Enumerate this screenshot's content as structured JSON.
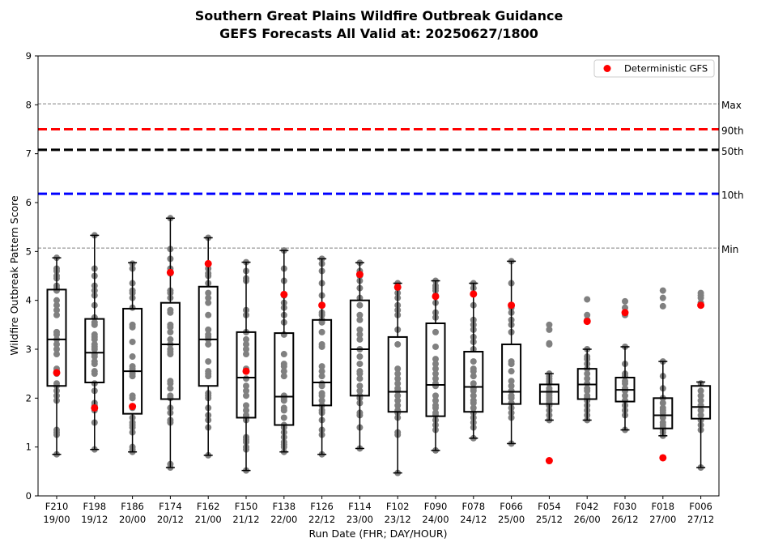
{
  "chart_data": {
    "type": "box",
    "title_line1": "Southern Great Plains Wildfire Outbreak Guidance",
    "title_line2": "GEFS Forecasts All Valid at: 20250627/1800",
    "xlabel": "Run Date (FHR; DAY/HOUR)",
    "ylabel": "Wildfire Outbreak Pattern Score",
    "ylim": [
      0,
      9
    ],
    "yticks": [
      "0",
      "1",
      "2",
      "3",
      "4",
      "5",
      "6",
      "7",
      "8",
      "9"
    ],
    "categories": [
      {
        "fhr": "F210",
        "dayhour": "19/00"
      },
      {
        "fhr": "F198",
        "dayhour": "19/12"
      },
      {
        "fhr": "F186",
        "dayhour": "20/00"
      },
      {
        "fhr": "F174",
        "dayhour": "20/12"
      },
      {
        "fhr": "F162",
        "dayhour": "21/00"
      },
      {
        "fhr": "F150",
        "dayhour": "21/12"
      },
      {
        "fhr": "F138",
        "dayhour": "22/00"
      },
      {
        "fhr": "F126",
        "dayhour": "22/12"
      },
      {
        "fhr": "F114",
        "dayhour": "23/00"
      },
      {
        "fhr": "F102",
        "dayhour": "23/12"
      },
      {
        "fhr": "F090",
        "dayhour": "24/00"
      },
      {
        "fhr": "F078",
        "dayhour": "24/12"
      },
      {
        "fhr": "F066",
        "dayhour": "25/00"
      },
      {
        "fhr": "F054",
        "dayhour": "25/12"
      },
      {
        "fhr": "F042",
        "dayhour": "26/00"
      },
      {
        "fhr": "F030",
        "dayhour": "26/12"
      },
      {
        "fhr": "F018",
        "dayhour": "27/00"
      },
      {
        "fhr": "F006",
        "dayhour": "27/12"
      }
    ],
    "boxes": [
      {
        "min": 0.85,
        "q1": 2.25,
        "median": 3.2,
        "q3": 4.22,
        "max": 4.87
      },
      {
        "min": 0.95,
        "q1": 2.32,
        "median": 2.93,
        "q3": 3.62,
        "max": 5.33
      },
      {
        "min": 0.9,
        "q1": 1.68,
        "median": 2.55,
        "q3": 3.83,
        "max": 4.77
      },
      {
        "min": 0.58,
        "q1": 1.98,
        "median": 3.1,
        "q3": 3.95,
        "max": 5.68
      },
      {
        "min": 0.83,
        "q1": 2.25,
        "median": 3.2,
        "q3": 4.28,
        "max": 5.28
      },
      {
        "min": 0.52,
        "q1": 1.6,
        "median": 2.42,
        "q3": 3.35,
        "max": 4.78
      },
      {
        "min": 0.9,
        "q1": 1.45,
        "median": 2.03,
        "q3": 3.33,
        "max": 5.02
      },
      {
        "min": 0.85,
        "q1": 1.85,
        "median": 2.32,
        "q3": 3.6,
        "max": 4.85
      },
      {
        "min": 0.97,
        "q1": 2.05,
        "median": 3.0,
        "q3": 4.0,
        "max": 4.77
      },
      {
        "min": 0.47,
        "q1": 1.72,
        "median": 2.13,
        "q3": 3.25,
        "max": 4.35
      },
      {
        "min": 0.93,
        "q1": 1.63,
        "median": 2.27,
        "q3": 3.53,
        "max": 4.4
      },
      {
        "min": 1.18,
        "q1": 1.72,
        "median": 2.23,
        "q3": 2.95,
        "max": 4.35
      },
      {
        "min": 1.07,
        "q1": 1.88,
        "median": 2.13,
        "q3": 3.1,
        "max": 4.8
      },
      {
        "min": 1.55,
        "q1": 1.88,
        "median": 2.13,
        "q3": 2.28,
        "max": 2.5
      },
      {
        "min": 1.55,
        "q1": 1.98,
        "median": 2.28,
        "q3": 2.6,
        "max": 3.0
      },
      {
        "min": 1.35,
        "q1": 1.93,
        "median": 2.17,
        "q3": 2.42,
        "max": 3.05
      },
      {
        "min": 1.23,
        "q1": 1.38,
        "median": 1.65,
        "q3": 2.0,
        "max": 2.75
      },
      {
        "min": 0.58,
        "q1": 1.58,
        "median": 1.82,
        "q3": 2.25,
        "max": 2.33
      }
    ],
    "members": [
      [
        0.85,
        1.25,
        1.3,
        1.35,
        1.95,
        2.05,
        2.15,
        2.25,
        2.3,
        2.5,
        2.55,
        2.6,
        2.9,
        3.0,
        3.1,
        3.2,
        3.3,
        3.35,
        3.7,
        3.8,
        3.9,
        4.0,
        4.2,
        4.25,
        4.3,
        4.45,
        4.5,
        4.6,
        4.65,
        4.87
      ],
      [
        0.95,
        1.5,
        1.75,
        1.85,
        1.9,
        2.15,
        2.3,
        2.5,
        2.55,
        2.7,
        2.75,
        2.85,
        2.9,
        3.0,
        3.05,
        3.1,
        3.2,
        3.25,
        3.3,
        3.5,
        3.55,
        3.65,
        3.9,
        4.1,
        4.2,
        4.3,
        4.5,
        4.65,
        5.33
      ],
      [
        0.9,
        0.95,
        1.0,
        1.3,
        1.4,
        1.45,
        1.5,
        1.6,
        1.8,
        2.0,
        2.05,
        2.45,
        2.5,
        2.55,
        2.6,
        2.65,
        2.85,
        3.15,
        3.45,
        3.5,
        3.85,
        4.05,
        4.15,
        4.2,
        4.35,
        4.65,
        4.75
      ],
      [
        0.58,
        0.65,
        1.5,
        1.55,
        1.7,
        1.8,
        2.0,
        2.05,
        2.2,
        2.3,
        2.35,
        2.9,
        2.95,
        3.0,
        3.1,
        3.2,
        3.35,
        3.45,
        3.5,
        3.75,
        3.8,
        4.05,
        4.15,
        4.2,
        4.55,
        4.65,
        4.85,
        5.05,
        5.68
      ],
      [
        0.83,
        1.4,
        1.55,
        1.65,
        1.8,
        2.0,
        2.05,
        2.1,
        2.45,
        2.5,
        2.55,
        2.75,
        3.1,
        3.2,
        3.25,
        3.3,
        3.4,
        3.7,
        3.95,
        4.05,
        4.15,
        4.35,
        4.5,
        4.55,
        4.65,
        4.75,
        5.28
      ],
      [
        0.52,
        0.95,
        1.0,
        1.1,
        1.15,
        1.2,
        1.55,
        1.6,
        1.65,
        1.75,
        1.85,
        2.05,
        2.15,
        2.25,
        2.4,
        2.55,
        2.6,
        2.9,
        3.0,
        3.1,
        3.2,
        3.35,
        3.7,
        3.8,
        4.4,
        4.45,
        4.6,
        4.78
      ],
      [
        0.9,
        1.0,
        1.05,
        1.1,
        1.2,
        1.3,
        1.4,
        1.45,
        1.6,
        1.75,
        1.8,
        1.95,
        2.0,
        2.05,
        2.45,
        2.55,
        2.65,
        2.7,
        2.9,
        3.3,
        3.55,
        3.7,
        3.85,
        3.95,
        4.1,
        4.4,
        4.65,
        5.02
      ],
      [
        0.85,
        1.25,
        1.35,
        1.55,
        1.7,
        1.75,
        1.85,
        1.95,
        2.05,
        2.1,
        2.25,
        2.3,
        2.45,
        2.55,
        2.65,
        3.05,
        3.1,
        3.35,
        3.55,
        3.6,
        3.7,
        3.75,
        3.9,
        4.1,
        4.35,
        4.6,
        4.75,
        4.85
      ],
      [
        0.97,
        1.4,
        1.65,
        1.7,
        1.9,
        2.0,
        2.05,
        2.15,
        2.25,
        2.4,
        2.5,
        2.55,
        2.7,
        2.85,
        3.0,
        3.2,
        3.3,
        3.4,
        3.6,
        3.7,
        3.9,
        4.05,
        4.25,
        4.4,
        4.5,
        4.6,
        4.77
      ],
      [
        0.47,
        1.25,
        1.3,
        1.6,
        1.7,
        1.75,
        1.85,
        1.95,
        2.05,
        2.15,
        2.2,
        2.3,
        2.4,
        2.5,
        2.6,
        3.1,
        3.4,
        3.7,
        3.8,
        3.9,
        4.05,
        4.15,
        4.25,
        4.35
      ],
      [
        0.93,
        1.35,
        1.45,
        1.55,
        1.65,
        1.7,
        1.8,
        1.85,
        1.95,
        2.05,
        2.25,
        2.3,
        2.4,
        2.5,
        2.6,
        2.7,
        2.8,
        3.05,
        3.35,
        3.65,
        3.75,
        3.95,
        4.1,
        4.2,
        4.25,
        4.3,
        4.4
      ],
      [
        1.18,
        1.4,
        1.5,
        1.6,
        1.7,
        1.8,
        1.9,
        1.95,
        2.05,
        2.15,
        2.2,
        2.3,
        2.45,
        2.55,
        2.6,
        2.75,
        3.0,
        3.15,
        3.25,
        3.4,
        3.5,
        3.6,
        3.9,
        4.25,
        4.35
      ],
      [
        1.07,
        1.6,
        1.7,
        1.8,
        1.9,
        2.0,
        2.05,
        2.15,
        2.25,
        2.35,
        2.55,
        2.7,
        2.75,
        3.35,
        3.5,
        3.6,
        3.75,
        3.85,
        4.35,
        4.8
      ],
      [
        1.55,
        1.65,
        1.75,
        1.85,
        1.9,
        1.95,
        2.0,
        2.05,
        2.1,
        2.15,
        2.2,
        2.3,
        2.35,
        2.4,
        2.45,
        2.5,
        3.1,
        3.12,
        3.4,
        3.5
      ],
      [
        1.55,
        1.65,
        1.75,
        1.85,
        1.95,
        2.0,
        2.05,
        2.15,
        2.2,
        2.3,
        2.4,
        2.5,
        2.6,
        2.7,
        2.8,
        2.85,
        3.0,
        3.6,
        3.7,
        4.02
      ],
      [
        1.35,
        1.65,
        1.75,
        1.85,
        1.95,
        2.05,
        2.15,
        2.2,
        2.3,
        2.35,
        2.45,
        2.5,
        2.7,
        3.05,
        3.7,
        3.75,
        3.85,
        3.98
      ],
      [
        1.23,
        1.3,
        1.35,
        1.4,
        1.45,
        1.5,
        1.6,
        1.7,
        1.75,
        1.8,
        1.9,
        2.0,
        2.2,
        2.45,
        2.75,
        3.88,
        4.05,
        4.2
      ],
      [
        0.58,
        1.35,
        1.45,
        1.55,
        1.65,
        1.75,
        1.85,
        1.95,
        2.05,
        2.15,
        2.3,
        3.95,
        4.05,
        4.1,
        4.15
      ]
    ],
    "deterministic": [
      2.52,
      1.8,
      1.83,
      4.57,
      4.75,
      2.55,
      4.12,
      3.9,
      4.53,
      4.27,
      4.08,
      4.13,
      3.9,
      0.72,
      3.57,
      3.75,
      0.78,
      3.9
    ],
    "reference_lines": [
      {
        "label": "Max",
        "value": 8.02,
        "color": "#808080",
        "style": "thin-dashed"
      },
      {
        "label": "90th",
        "value": 7.5,
        "color": "#ff0000",
        "style": "thick-dashed"
      },
      {
        "label": "50th",
        "value": 7.08,
        "color": "#000000",
        "style": "thick-dashed"
      },
      {
        "label": "10th",
        "value": 6.18,
        "color": "#0000ff",
        "style": "thick-dashed"
      },
      {
        "label": "Min",
        "value": 5.07,
        "color": "#808080",
        "style": "thin-dashed"
      }
    ],
    "legend": {
      "label": "Deterministic GFS",
      "placement": "top-right",
      "marker_color": "#ff0000"
    },
    "colors": {
      "member": "#808080",
      "deterministic": "#ff0000",
      "box": "#000000"
    },
    "grid": false
  }
}
